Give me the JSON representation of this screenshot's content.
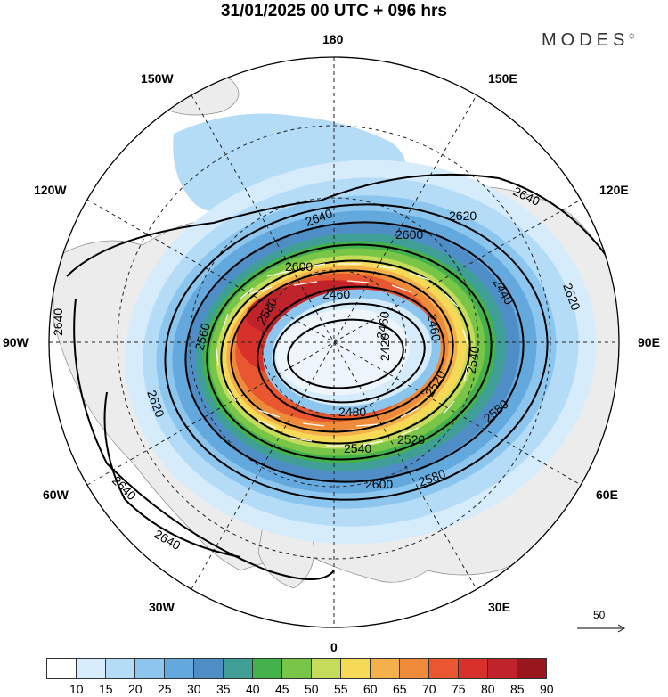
{
  "header": {
    "title": "31/01/2025  00 UTC  + 096 hrs",
    "brand": "MODES",
    "brand_mark": "©"
  },
  "longitude_labels": {
    "top": "180",
    "left": "90W",
    "right": "90E",
    "bottom": "0",
    "nw1": "150W",
    "nw2": "120W",
    "ne1": "150E",
    "ne2": "120E",
    "sw1": "60W",
    "sw2": "30W",
    "se1": "60E",
    "se2": "30E"
  },
  "contour_labels": [
    "2640",
    "2640",
    "2640",
    "2640",
    "2640",
    "2620",
    "2620",
    "2600",
    "2600",
    "2600",
    "2560",
    "2540",
    "2540",
    "2520",
    "2520",
    "2480",
    "2460",
    "2460",
    "2460",
    "2440",
    "2420",
    "2580",
    "2580",
    "2580",
    "2620"
  ],
  "vector_scale": {
    "label": "50"
  },
  "colorbar": {
    "ticks": [
      "10",
      "15",
      "20",
      "25",
      "30",
      "35",
      "40",
      "45",
      "50",
      "55",
      "60",
      "65",
      "70",
      "75",
      "80",
      "85",
      "90"
    ],
    "colors": [
      "#ffffff",
      "#d6ecfb",
      "#b4dcf6",
      "#8cc6ef",
      "#64a9de",
      "#4f8dc6",
      "#3f9f96",
      "#43b24a",
      "#78c547",
      "#c4dc59",
      "#f6d957",
      "#f4b04b",
      "#ef8a3b",
      "#e8572f",
      "#d8302a",
      "#c0242a",
      "#98171e"
    ]
  }
}
